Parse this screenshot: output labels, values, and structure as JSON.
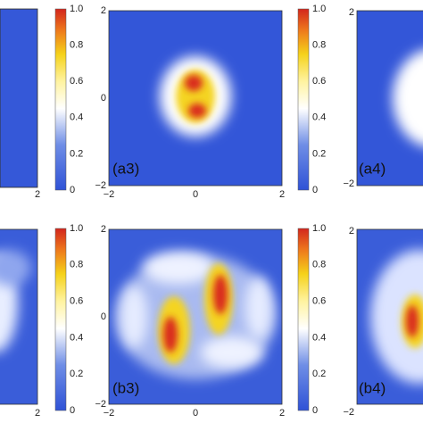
{
  "colorbar_ticks": [
    "1.0",
    "0.8",
    "0.6",
    "0.4",
    "0.2",
    "0"
  ],
  "axis_ticks": [
    "−2",
    "0",
    "2"
  ],
  "panels": [
    {
      "label": "(a3)"
    },
    {
      "label": "(a4)"
    },
    {
      "label": "(b3)"
    },
    {
      "label": "(b4)"
    }
  ]
}
